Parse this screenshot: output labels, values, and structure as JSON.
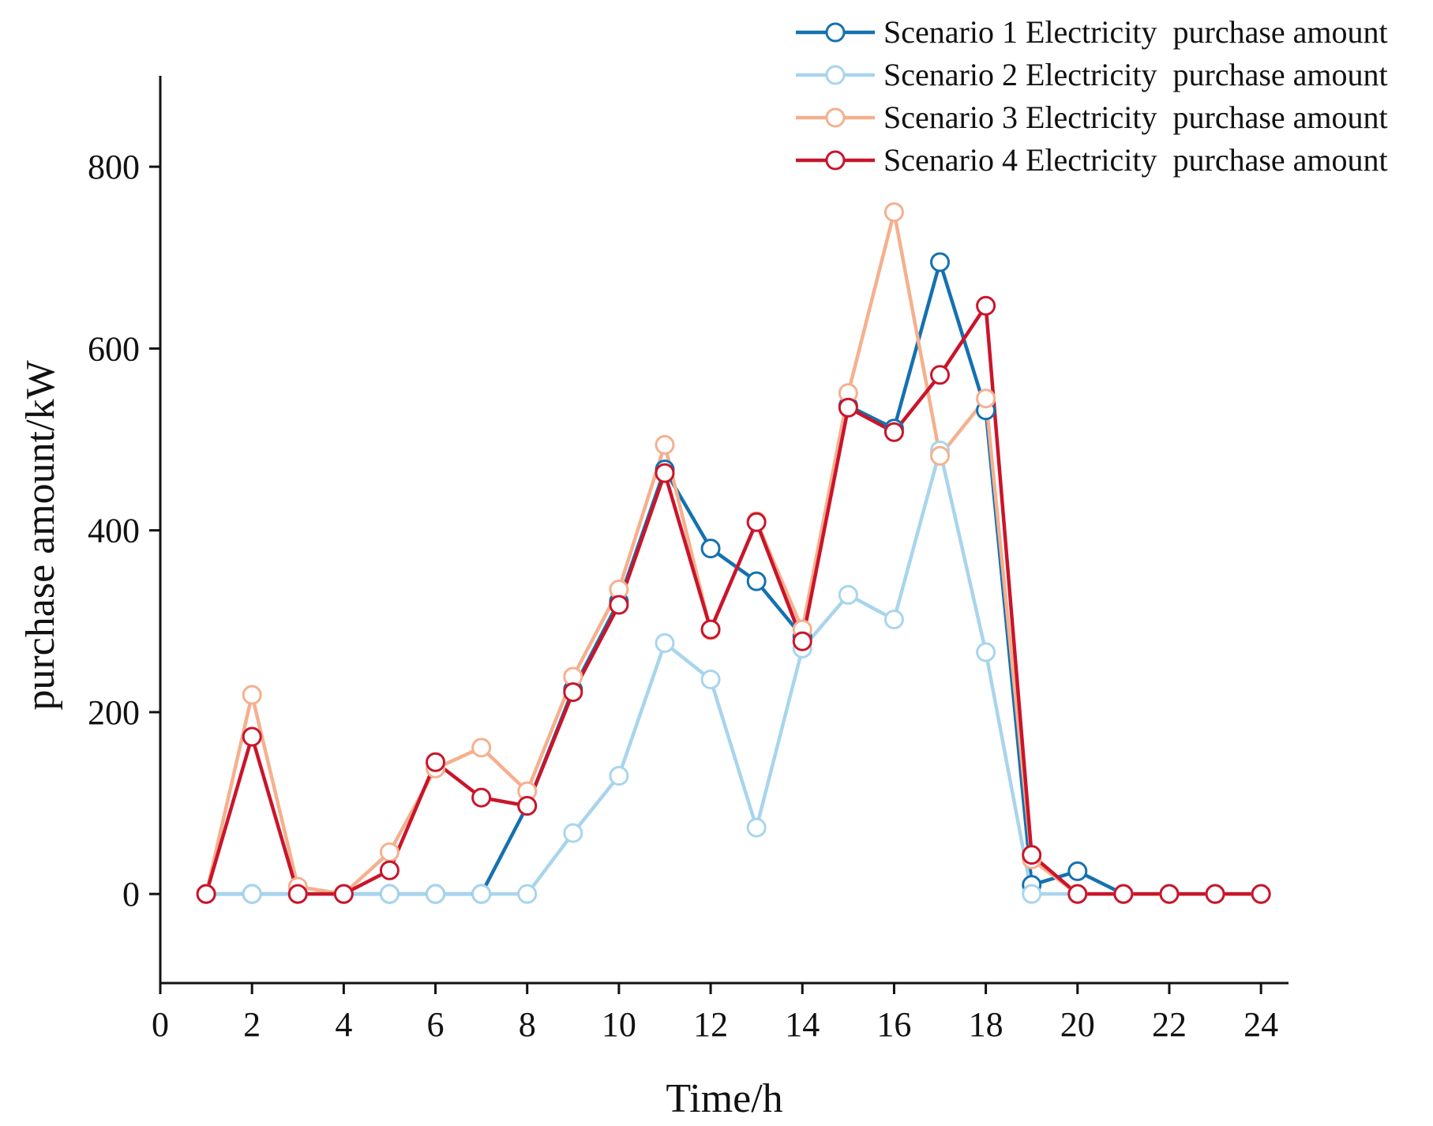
{
  "chart_data": {
    "type": "line",
    "title": "",
    "xlabel": "Time/h",
    "ylabel": "purchase amount/kW",
    "xlim": [
      0,
      24.6
    ],
    "ylim": [
      -98,
      900
    ],
    "xticks": [
      0,
      2,
      4,
      6,
      8,
      10,
      12,
      14,
      16,
      18,
      20,
      22,
      24
    ],
    "yticks": [
      0,
      200,
      400,
      600,
      800
    ],
    "grid": false,
    "legend_position": "top-right",
    "x": [
      1,
      2,
      3,
      4,
      5,
      6,
      7,
      8,
      9,
      10,
      11,
      12,
      13,
      14,
      15,
      16,
      17,
      18,
      19,
      20,
      21,
      22,
      23,
      24
    ],
    "series": [
      {
        "name": "Scenario 1 Electricity  purchase amount",
        "color": "#1571b0",
        "values": [
          0,
          0,
          0,
          0,
          0,
          0,
          0,
          97,
          225,
          322,
          467,
          380,
          344,
          283,
          537,
          512,
          695,
          532,
          10,
          25,
          0,
          0,
          0,
          0
        ]
      },
      {
        "name": "Scenario 2 Electricity  purchase amount",
        "color": "#a8d5ec",
        "values": [
          0,
          0,
          0,
          0,
          0,
          0,
          0,
          0,
          67,
          130,
          276,
          236,
          73,
          270,
          329,
          302,
          488,
          266,
          0,
          0,
          0,
          0,
          0,
          0
        ]
      },
      {
        "name": "Scenario 3 Electricity  purchase amount",
        "color": "#f5b08e",
        "values": [
          0,
          219,
          8,
          0,
          46,
          138,
          161,
          113,
          239,
          335,
          494,
          290,
          410,
          291,
          551,
          750,
          482,
          545,
          38,
          0,
          0,
          0,
          0,
          0
        ]
      },
      {
        "name": "Scenario 4 Electricity  purchase amount",
        "color": "#c9152b",
        "values": [
          0,
          173,
          0,
          0,
          26,
          145,
          106,
          97,
          222,
          318,
          463,
          291,
          409,
          278,
          535,
          508,
          571,
          647,
          43,
          0,
          0,
          0,
          0,
          0
        ]
      }
    ]
  }
}
